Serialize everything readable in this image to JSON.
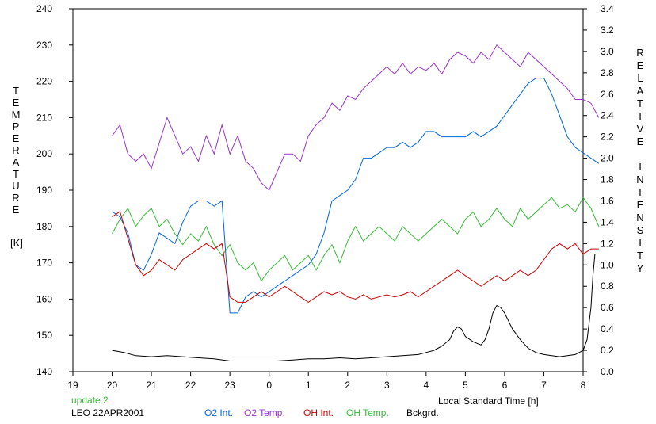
{
  "chart_data": {
    "type": "line",
    "xlabel": "Local Standard Time [h]",
    "ylabel_left": "TEMPERATURE",
    "ylabel_left_unit": "[K]",
    "ylabel_right": "RELATIVE INTENSITY",
    "x_ticks": [
      "19",
      "20",
      "21",
      "22",
      "23",
      "0",
      "1",
      "2",
      "3",
      "4",
      "5",
      "6",
      "7",
      "8"
    ],
    "xlim": [
      19,
      32
    ],
    "ylim_left": [
      140,
      240
    ],
    "y_ticks_left": [
      "140",
      "150",
      "160",
      "170",
      "180",
      "190",
      "200",
      "210",
      "220",
      "230",
      "240"
    ],
    "ylim_right": [
      0,
      3.4
    ],
    "y_ticks_right": [
      "0.0",
      "0.2",
      "0.4",
      "0.6",
      "0.8",
      "1.0",
      "1.2",
      "1.4",
      "1.6",
      "1.8",
      "2.0",
      "2.2",
      "2.4",
      "2.6",
      "2.8",
      "3.0",
      "3.2",
      "3.4"
    ],
    "grid": false,
    "legend_position": "bottom",
    "update_note": "update 2",
    "station_date": "LEO 22APR2001",
    "series": [
      {
        "name": "O2 Int.",
        "axis": "right",
        "color": "#0066dd",
        "points": [
          [
            20.0,
            1.5
          ],
          [
            20.2,
            1.45
          ],
          [
            20.4,
            1.3
          ],
          [
            20.6,
            1.0
          ],
          [
            20.8,
            0.95
          ],
          [
            21.0,
            1.1
          ],
          [
            21.2,
            1.3
          ],
          [
            21.4,
            1.25
          ],
          [
            21.6,
            1.2
          ],
          [
            21.8,
            1.4
          ],
          [
            22.0,
            1.55
          ],
          [
            22.2,
            1.6
          ],
          [
            22.4,
            1.6
          ],
          [
            22.6,
            1.55
          ],
          [
            22.8,
            1.6
          ],
          [
            23.0,
            0.55
          ],
          [
            23.2,
            0.55
          ],
          [
            23.4,
            0.7
          ],
          [
            23.6,
            0.75
          ],
          [
            23.8,
            0.7
          ],
          [
            24.0,
            0.75
          ],
          [
            24.2,
            0.8
          ],
          [
            24.4,
            0.85
          ],
          [
            24.6,
            0.9
          ],
          [
            24.8,
            0.95
          ],
          [
            25.0,
            1.0
          ],
          [
            25.2,
            1.1
          ],
          [
            25.4,
            1.3
          ],
          [
            25.6,
            1.6
          ],
          [
            25.8,
            1.65
          ],
          [
            26.0,
            1.7
          ],
          [
            26.2,
            1.8
          ],
          [
            26.4,
            2.0
          ],
          [
            26.6,
            2.0
          ],
          [
            26.8,
            2.05
          ],
          [
            27.0,
            2.1
          ],
          [
            27.2,
            2.1
          ],
          [
            27.4,
            2.15
          ],
          [
            27.6,
            2.1
          ],
          [
            27.8,
            2.15
          ],
          [
            28.0,
            2.25
          ],
          [
            28.2,
            2.25
          ],
          [
            28.4,
            2.2
          ],
          [
            28.6,
            2.2
          ],
          [
            28.8,
            2.2
          ],
          [
            29.0,
            2.2
          ],
          [
            29.2,
            2.25
          ],
          [
            29.4,
            2.2
          ],
          [
            29.6,
            2.25
          ],
          [
            29.8,
            2.3
          ],
          [
            30.0,
            2.4
          ],
          [
            30.2,
            2.5
          ],
          [
            30.4,
            2.6
          ],
          [
            30.6,
            2.7
          ],
          [
            30.8,
            2.75
          ],
          [
            31.0,
            2.75
          ],
          [
            31.2,
            2.6
          ],
          [
            31.4,
            2.4
          ],
          [
            31.6,
            2.2
          ],
          [
            31.8,
            2.1
          ],
          [
            32.0,
            2.05
          ],
          [
            32.2,
            2.0
          ],
          [
            32.4,
            1.95
          ]
        ]
      },
      {
        "name": "O2 Temp.",
        "axis": "left",
        "color": "#9933cc",
        "points": [
          [
            20.0,
            205
          ],
          [
            20.2,
            208
          ],
          [
            20.4,
            200
          ],
          [
            20.6,
            198
          ],
          [
            20.8,
            200
          ],
          [
            21.0,
            196
          ],
          [
            21.2,
            203
          ],
          [
            21.4,
            210
          ],
          [
            21.6,
            205
          ],
          [
            21.8,
            200
          ],
          [
            22.0,
            202
          ],
          [
            22.2,
            198
          ],
          [
            22.4,
            205
          ],
          [
            22.6,
            200
          ],
          [
            22.8,
            208
          ],
          [
            23.0,
            200
          ],
          [
            23.2,
            205
          ],
          [
            23.4,
            198
          ],
          [
            23.6,
            196
          ],
          [
            23.8,
            192
          ],
          [
            24.0,
            190
          ],
          [
            24.2,
            195
          ],
          [
            24.4,
            200
          ],
          [
            24.6,
            200
          ],
          [
            24.8,
            198
          ],
          [
            25.0,
            205
          ],
          [
            25.2,
            208
          ],
          [
            25.4,
            210
          ],
          [
            25.6,
            214
          ],
          [
            25.8,
            212
          ],
          [
            26.0,
            216
          ],
          [
            26.2,
            215
          ],
          [
            26.4,
            218
          ],
          [
            26.6,
            220
          ],
          [
            26.8,
            222
          ],
          [
            27.0,
            224
          ],
          [
            27.2,
            222
          ],
          [
            27.4,
            225
          ],
          [
            27.6,
            222
          ],
          [
            27.8,
            224
          ],
          [
            28.0,
            223
          ],
          [
            28.2,
            225
          ],
          [
            28.4,
            222
          ],
          [
            28.6,
            226
          ],
          [
            28.8,
            228
          ],
          [
            29.0,
            227
          ],
          [
            29.2,
            225
          ],
          [
            29.4,
            228
          ],
          [
            29.6,
            226
          ],
          [
            29.8,
            230
          ],
          [
            30.0,
            228
          ],
          [
            30.2,
            226
          ],
          [
            30.4,
            224
          ],
          [
            30.6,
            228
          ],
          [
            30.8,
            226
          ],
          [
            31.0,
            224
          ],
          [
            31.2,
            222
          ],
          [
            31.4,
            220
          ],
          [
            31.6,
            218
          ],
          [
            31.8,
            215
          ],
          [
            32.0,
            215
          ],
          [
            32.2,
            214
          ],
          [
            32.4,
            210
          ]
        ]
      },
      {
        "name": "OH Int.",
        "axis": "right",
        "color": "#cc0000",
        "points": [
          [
            20.0,
            1.45
          ],
          [
            20.2,
            1.5
          ],
          [
            20.4,
            1.25
          ],
          [
            20.6,
            1.0
          ],
          [
            20.8,
            0.9
          ],
          [
            21.0,
            0.95
          ],
          [
            21.2,
            1.05
          ],
          [
            21.4,
            1.0
          ],
          [
            21.6,
            0.95
          ],
          [
            21.8,
            1.05
          ],
          [
            22.0,
            1.1
          ],
          [
            22.2,
            1.15
          ],
          [
            22.4,
            1.2
          ],
          [
            22.6,
            1.15
          ],
          [
            22.8,
            1.2
          ],
          [
            23.0,
            0.7
          ],
          [
            23.2,
            0.65
          ],
          [
            23.4,
            0.65
          ],
          [
            23.6,
            0.7
          ],
          [
            23.8,
            0.75
          ],
          [
            24.0,
            0.7
          ],
          [
            24.2,
            0.75
          ],
          [
            24.4,
            0.8
          ],
          [
            24.6,
            0.75
          ],
          [
            24.8,
            0.7
          ],
          [
            25.0,
            0.65
          ],
          [
            25.2,
            0.7
          ],
          [
            25.4,
            0.75
          ],
          [
            25.6,
            0.72
          ],
          [
            25.8,
            0.75
          ],
          [
            26.0,
            0.7
          ],
          [
            26.2,
            0.68
          ],
          [
            26.4,
            0.72
          ],
          [
            26.6,
            0.68
          ],
          [
            26.8,
            0.7
          ],
          [
            27.0,
            0.72
          ],
          [
            27.2,
            0.7
          ],
          [
            27.4,
            0.72
          ],
          [
            27.6,
            0.75
          ],
          [
            27.8,
            0.7
          ],
          [
            28.0,
            0.75
          ],
          [
            28.2,
            0.8
          ],
          [
            28.4,
            0.85
          ],
          [
            28.6,
            0.9
          ],
          [
            28.8,
            0.95
          ],
          [
            29.0,
            0.9
          ],
          [
            29.2,
            0.85
          ],
          [
            29.4,
            0.8
          ],
          [
            29.6,
            0.85
          ],
          [
            29.8,
            0.9
          ],
          [
            30.0,
            0.85
          ],
          [
            30.2,
            0.9
          ],
          [
            30.4,
            0.95
          ],
          [
            30.6,
            0.9
          ],
          [
            30.8,
            0.95
          ],
          [
            31.0,
            1.05
          ],
          [
            31.2,
            1.15
          ],
          [
            31.4,
            1.2
          ],
          [
            31.6,
            1.15
          ],
          [
            31.8,
            1.2
          ],
          [
            32.0,
            1.1
          ],
          [
            32.2,
            1.15
          ],
          [
            32.4,
            1.15
          ]
        ]
      },
      {
        "name": "OH Temp.",
        "axis": "left",
        "color": "#33bb33",
        "points": [
          [
            20.0,
            178
          ],
          [
            20.2,
            182
          ],
          [
            20.4,
            185
          ],
          [
            20.6,
            180
          ],
          [
            20.8,
            183
          ],
          [
            21.0,
            185
          ],
          [
            21.2,
            180
          ],
          [
            21.4,
            182
          ],
          [
            21.6,
            178
          ],
          [
            21.8,
            175
          ],
          [
            22.0,
            178
          ],
          [
            22.2,
            176
          ],
          [
            22.4,
            180
          ],
          [
            22.6,
            175
          ],
          [
            22.8,
            172
          ],
          [
            23.0,
            175
          ],
          [
            23.2,
            170
          ],
          [
            23.4,
            168
          ],
          [
            23.6,
            170
          ],
          [
            23.8,
            165
          ],
          [
            24.0,
            168
          ],
          [
            24.2,
            170
          ],
          [
            24.4,
            172
          ],
          [
            24.6,
            168
          ],
          [
            24.8,
            170
          ],
          [
            25.0,
            172
          ],
          [
            25.2,
            168
          ],
          [
            25.4,
            172
          ],
          [
            25.6,
            175
          ],
          [
            25.8,
            170
          ],
          [
            26.0,
            176
          ],
          [
            26.2,
            180
          ],
          [
            26.4,
            176
          ],
          [
            26.6,
            178
          ],
          [
            26.8,
            180
          ],
          [
            27.0,
            178
          ],
          [
            27.2,
            176
          ],
          [
            27.4,
            180
          ],
          [
            27.6,
            178
          ],
          [
            27.8,
            176
          ],
          [
            28.0,
            178
          ],
          [
            28.2,
            180
          ],
          [
            28.4,
            182
          ],
          [
            28.6,
            180
          ],
          [
            28.8,
            178
          ],
          [
            29.0,
            182
          ],
          [
            29.2,
            184
          ],
          [
            29.4,
            180
          ],
          [
            29.6,
            182
          ],
          [
            29.8,
            185
          ],
          [
            30.0,
            182
          ],
          [
            30.2,
            180
          ],
          [
            30.4,
            185
          ],
          [
            30.6,
            182
          ],
          [
            30.8,
            184
          ],
          [
            31.0,
            186
          ],
          [
            31.2,
            188
          ],
          [
            31.4,
            185
          ],
          [
            31.6,
            186
          ],
          [
            31.8,
            184
          ],
          [
            32.0,
            188
          ],
          [
            32.2,
            185
          ],
          [
            32.4,
            180
          ]
        ]
      },
      {
        "name": "Bckgrd.",
        "axis": "right",
        "color": "#000000",
        "points": [
          [
            20.0,
            0.2
          ],
          [
            20.3,
            0.18
          ],
          [
            20.6,
            0.15
          ],
          [
            21.0,
            0.14
          ],
          [
            21.4,
            0.15
          ],
          [
            21.8,
            0.14
          ],
          [
            22.2,
            0.13
          ],
          [
            22.6,
            0.12
          ],
          [
            23.0,
            0.1
          ],
          [
            23.4,
            0.1
          ],
          [
            23.8,
            0.1
          ],
          [
            24.2,
            0.1
          ],
          [
            24.6,
            0.11
          ],
          [
            25.0,
            0.12
          ],
          [
            25.4,
            0.12
          ],
          [
            25.8,
            0.13
          ],
          [
            26.2,
            0.12
          ],
          [
            26.6,
            0.13
          ],
          [
            27.0,
            0.14
          ],
          [
            27.4,
            0.15
          ],
          [
            27.8,
            0.16
          ],
          [
            28.0,
            0.18
          ],
          [
            28.2,
            0.2
          ],
          [
            28.4,
            0.24
          ],
          [
            28.6,
            0.3
          ],
          [
            28.7,
            0.38
          ],
          [
            28.8,
            0.42
          ],
          [
            28.9,
            0.4
          ],
          [
            29.0,
            0.33
          ],
          [
            29.2,
            0.28
          ],
          [
            29.4,
            0.25
          ],
          [
            29.5,
            0.3
          ],
          [
            29.6,
            0.4
          ],
          [
            29.7,
            0.55
          ],
          [
            29.8,
            0.62
          ],
          [
            29.9,
            0.6
          ],
          [
            30.0,
            0.55
          ],
          [
            30.2,
            0.4
          ],
          [
            30.4,
            0.3
          ],
          [
            30.6,
            0.22
          ],
          [
            30.8,
            0.18
          ],
          [
            31.0,
            0.16
          ],
          [
            31.2,
            0.15
          ],
          [
            31.4,
            0.14
          ],
          [
            31.6,
            0.15
          ],
          [
            31.8,
            0.16
          ],
          [
            32.0,
            0.2
          ],
          [
            32.1,
            0.3
          ],
          [
            32.2,
            0.6
          ],
          [
            32.25,
            0.9
          ],
          [
            32.3,
            1.1
          ]
        ]
      }
    ]
  }
}
